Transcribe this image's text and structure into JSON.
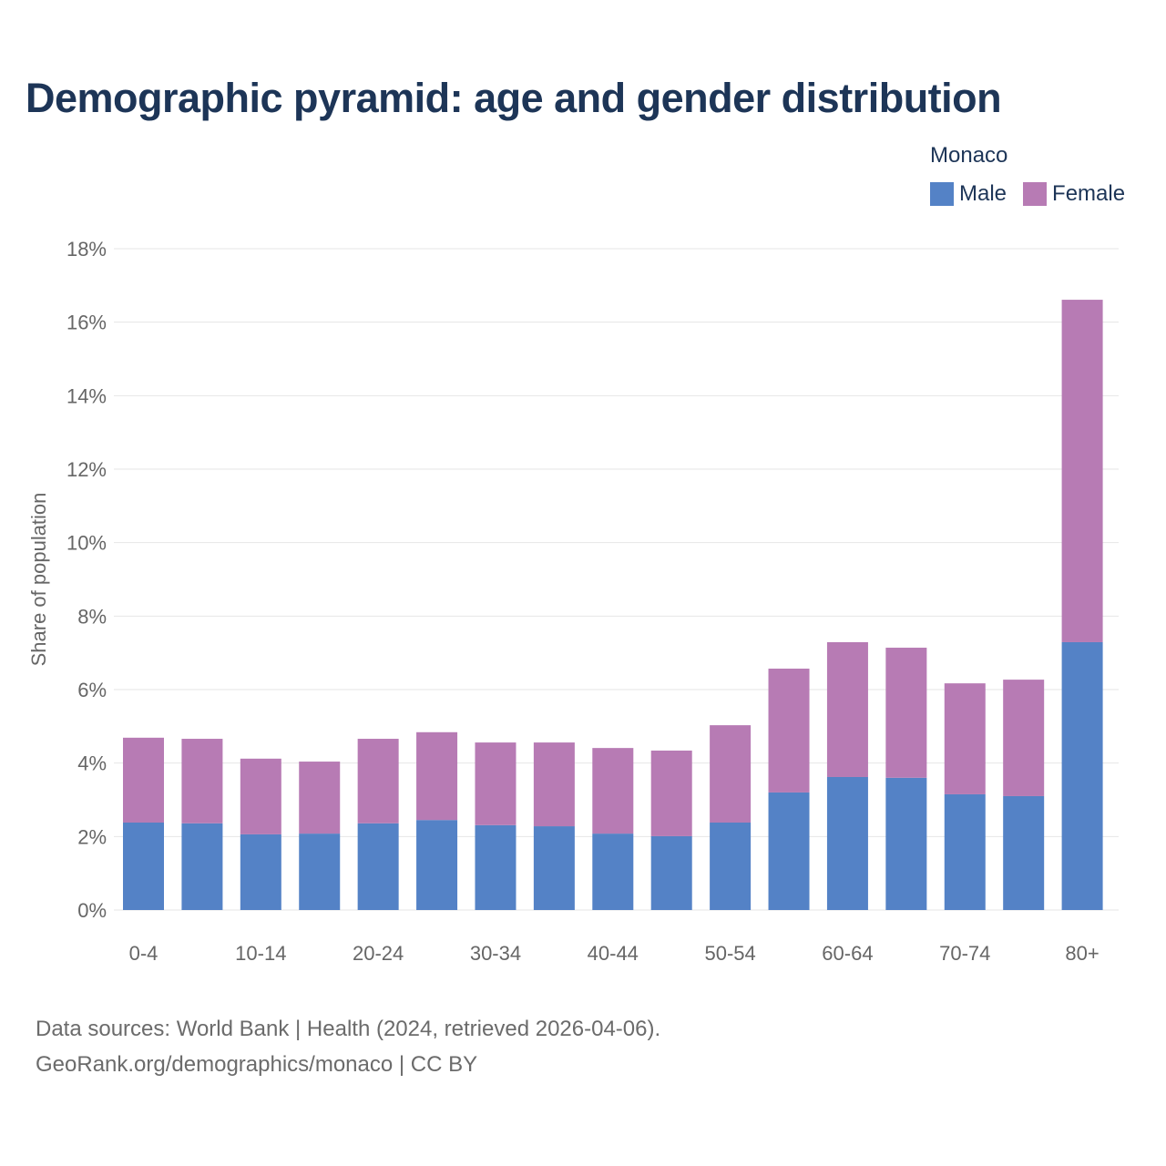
{
  "chart_data": {
    "type": "bar",
    "stacked": true,
    "title": "Demographic pyramid: age and gender distribution",
    "legend_title": "Monaco",
    "legend_placement": "top-right",
    "xlabel": "",
    "ylabel": "Share of population",
    "ylim": [
      0,
      18
    ],
    "yticks": [
      0,
      2,
      4,
      6,
      8,
      10,
      12,
      14,
      16,
      18
    ],
    "ytick_labels": [
      "0%",
      "2%",
      "4%",
      "6%",
      "8%",
      "10%",
      "12%",
      "14%",
      "16%",
      "18%"
    ],
    "categories": [
      "0-4",
      "5-9",
      "10-14",
      "15-19",
      "20-24",
      "25-29",
      "30-34",
      "35-39",
      "40-44",
      "45-49",
      "50-54",
      "55-59",
      "60-64",
      "65-69",
      "70-74",
      "75-79",
      "80+"
    ],
    "shown_xtick_labels": [
      "0-4",
      "10-14",
      "20-24",
      "30-34",
      "40-44",
      "50-54",
      "60-64",
      "70-74",
      "80+"
    ],
    "grid": true,
    "series": [
      {
        "name": "Male",
        "color": "#5482c6",
        "values": [
          2.38,
          2.36,
          2.06,
          2.08,
          2.36,
          2.45,
          2.31,
          2.28,
          2.08,
          2.01,
          2.38,
          3.2,
          3.62,
          3.6,
          3.15,
          3.1,
          7.29
        ]
      },
      {
        "name": "Female",
        "color": "#b77bb4",
        "values": [
          2.31,
          2.3,
          2.06,
          1.96,
          2.3,
          2.39,
          2.25,
          2.28,
          2.33,
          2.33,
          2.65,
          3.37,
          3.67,
          3.54,
          3.02,
          3.17,
          9.32
        ]
      }
    ]
  },
  "footer": {
    "line1": "Data sources: World Bank | Health (2024, retrieved 2026-04-06).",
    "line2": "GeoRank.org/demographics/monaco | CC BY"
  }
}
